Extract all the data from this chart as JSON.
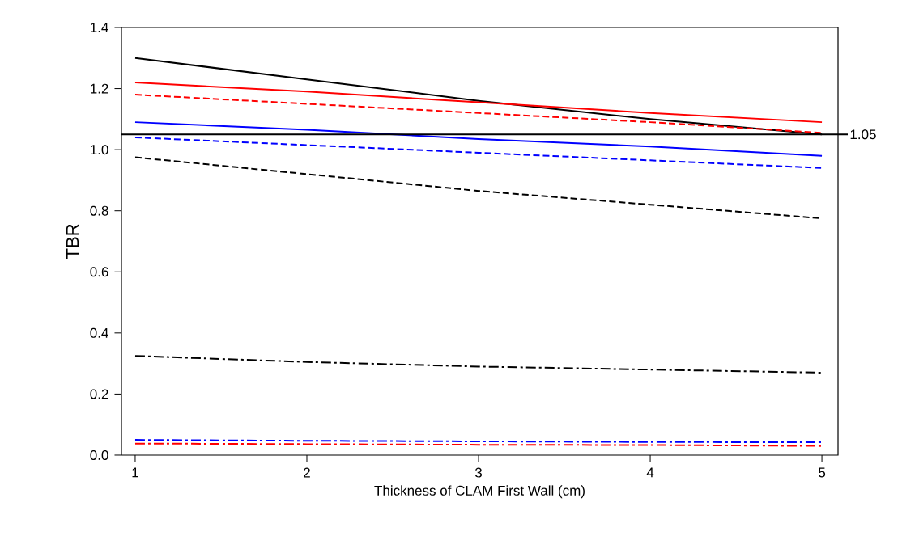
{
  "chart_data": {
    "type": "line",
    "xlabel": "Thickness of CLAM First Wall (cm)",
    "ylabel": "TBR",
    "x": [
      1,
      2,
      3,
      4,
      5
    ],
    "series": [
      {
        "color": "#000000",
        "line_style": "solid",
        "values": [
          1.3,
          1.23,
          1.16,
          1.1,
          1.05
        ]
      },
      {
        "color": "#ff0000",
        "line_style": "solid",
        "values": [
          1.22,
          1.19,
          1.155,
          1.12,
          1.09
        ]
      },
      {
        "color": "#ff0000",
        "line_style": "dashed",
        "values": [
          1.18,
          1.15,
          1.12,
          1.09,
          1.055
        ]
      },
      {
        "color": "#0000ff",
        "line_style": "solid",
        "values": [
          1.09,
          1.065,
          1.035,
          1.01,
          0.98
        ]
      },
      {
        "color": "#0000ff",
        "line_style": "dashed",
        "values": [
          1.04,
          1.015,
          0.99,
          0.965,
          0.94
        ]
      },
      {
        "color": "#000000",
        "line_style": "dashed",
        "values": [
          0.975,
          0.92,
          0.865,
          0.82,
          0.775
        ]
      },
      {
        "color": "#000000",
        "line_style": "dashdot",
        "values": [
          0.325,
          0.305,
          0.29,
          0.28,
          0.27
        ]
      },
      {
        "color": "#0000ff",
        "line_style": "dashdot",
        "values": [
          0.05,
          0.047,
          0.045,
          0.043,
          0.042
        ]
      },
      {
        "color": "#ff0000",
        "line_style": "dashdot",
        "values": [
          0.038,
          0.036,
          0.034,
          0.033,
          0.03
        ]
      }
    ],
    "xlim": [
      0.92,
      5.094
    ],
    "xticks": [
      1,
      2,
      3,
      4,
      5
    ],
    "ylim": [
      0,
      1.4
    ],
    "yticks": [
      {
        "value": 0,
        "label": "0.0"
      },
      0.2,
      0.4,
      0.6,
      0.8,
      {
        "value": 1,
        "label": "1.0"
      },
      1.2,
      1.4
    ],
    "ref_lines": [
      {
        "axis": "y",
        "value": 1.05,
        "label": "1.05",
        "color": "#000000"
      }
    ],
    "grid": false,
    "marker": "none"
  }
}
